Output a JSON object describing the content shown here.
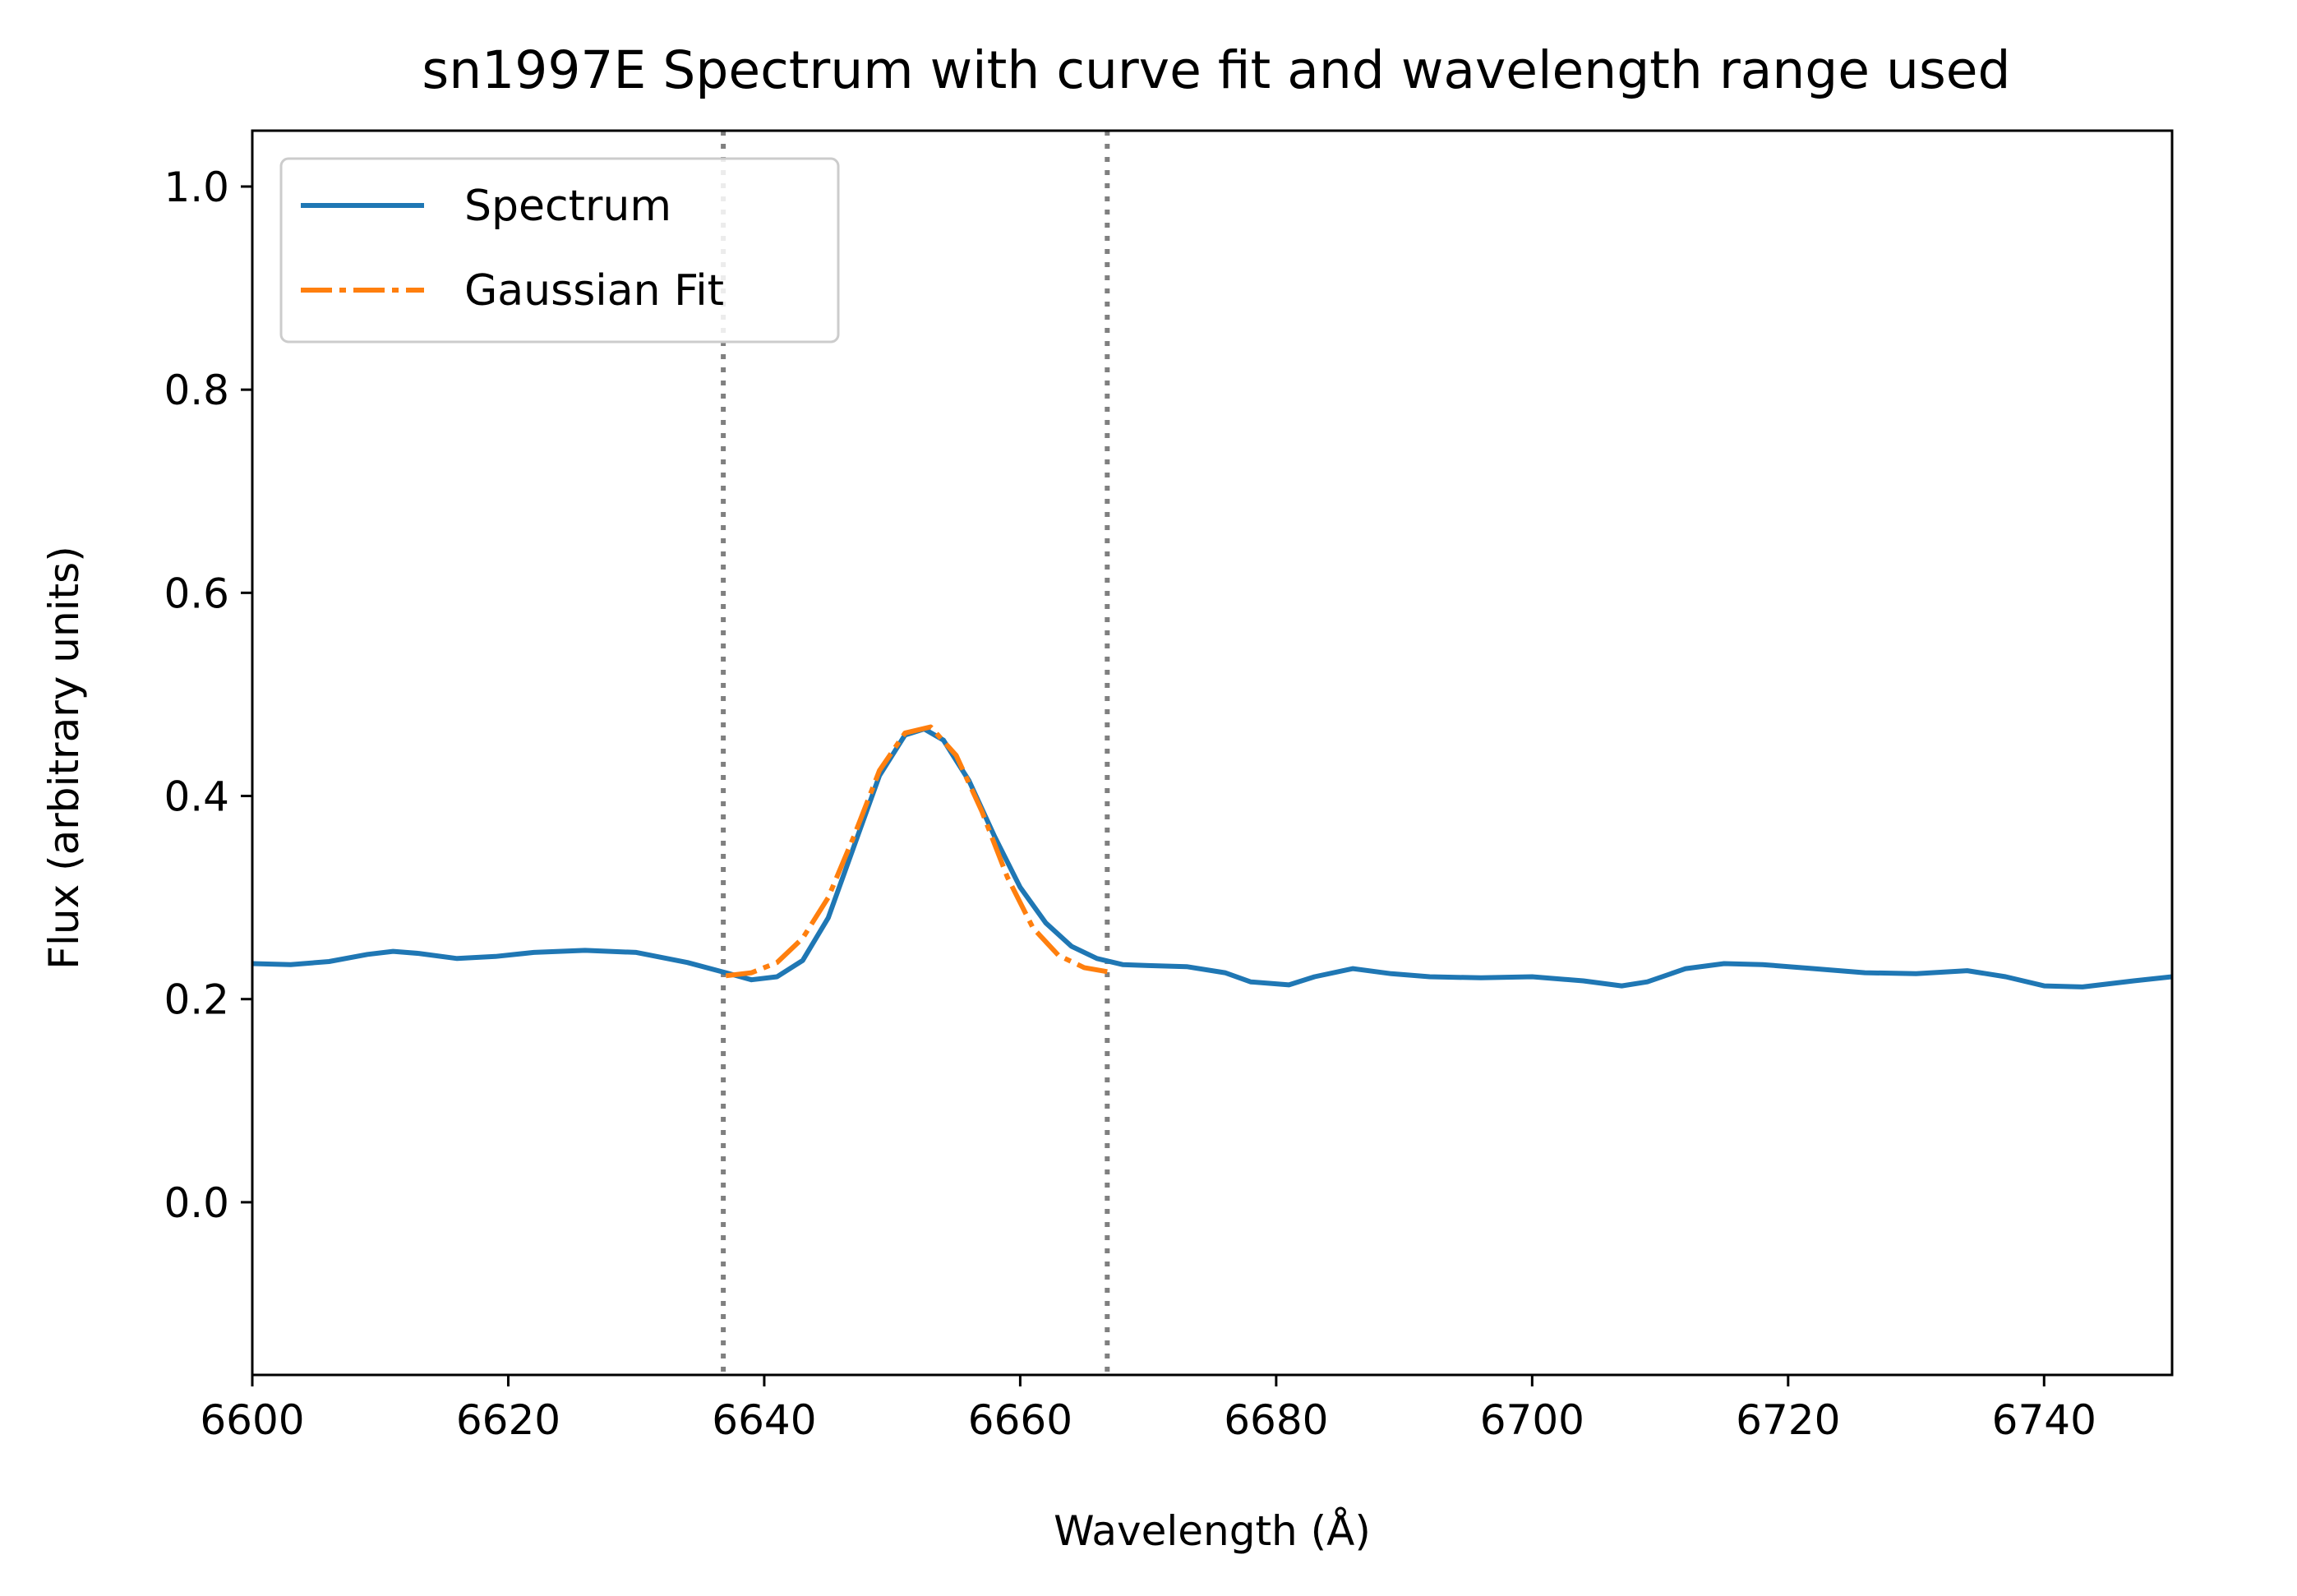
{
  "chart_data": {
    "type": "line",
    "title": "sn1997E Spectrum with curve fit and wavelength range used",
    "xlabel": "Wavelength (Å)",
    "ylabel": "Flux (arbitrary units)",
    "xlim": [
      6600,
      6750
    ],
    "ylim": [
      -0.17,
      1.055
    ],
    "xticks": [
      6600,
      6620,
      6640,
      6660,
      6680,
      6700,
      6720,
      6740
    ],
    "yticks": [
      0.0,
      0.2,
      0.4,
      0.6,
      0.8,
      1.0
    ],
    "xtick_labels": [
      "6600",
      "6620",
      "6640",
      "6660",
      "6680",
      "6700",
      "6720",
      "6740"
    ],
    "ytick_labels": [
      "0.0",
      "0.2",
      "0.4",
      "0.6",
      "0.8",
      "1.0"
    ],
    "grid": false,
    "legend": {
      "placement": "upper-left"
    },
    "vlines": [
      {
        "x": 6636.8,
        "style": "dotted",
        "color": "#808080"
      },
      {
        "x": 6666.8,
        "style": "dotted",
        "color": "#808080"
      }
    ],
    "series": [
      {
        "name": "Spectrum",
        "color": "#1f77b4",
        "style": "solid",
        "x": [
          6600,
          6603,
          6606,
          6609,
          6611,
          6613,
          6616,
          6619,
          6622,
          6626,
          6630,
          6634,
          6637,
          6639,
          6641,
          6643,
          6645,
          6647,
          6649,
          6651,
          6652.5,
          6654,
          6656,
          6658,
          6660,
          6662,
          6664,
          6666,
          6668,
          6670,
          6673,
          6676,
          6678,
          6681,
          6683,
          6686,
          6689,
          6692,
          6696,
          6700,
          6704,
          6707,
          6709,
          6712,
          6715,
          6718,
          6722,
          6726,
          6730,
          6734,
          6737,
          6740,
          6743,
          6747,
          6750
        ],
        "y": [
          0.235,
          0.234,
          0.237,
          0.244,
          0.247,
          0.245,
          0.24,
          0.242,
          0.246,
          0.248,
          0.246,
          0.236,
          0.226,
          0.219,
          0.222,
          0.238,
          0.28,
          0.35,
          0.42,
          0.46,
          0.466,
          0.455,
          0.415,
          0.36,
          0.31,
          0.275,
          0.252,
          0.24,
          0.234,
          0.233,
          0.232,
          0.226,
          0.217,
          0.214,
          0.222,
          0.23,
          0.225,
          0.222,
          0.221,
          0.222,
          0.218,
          0.213,
          0.217,
          0.23,
          0.235,
          0.234,
          0.23,
          0.226,
          0.225,
          0.228,
          0.222,
          0.213,
          0.212,
          0.218,
          0.222
        ]
      },
      {
        "name": "Gaussian Fit",
        "color": "#ff7f0e",
        "style": "dashdot",
        "x": [
          6637,
          6639,
          6641,
          6643,
          6645,
          6647,
          6649,
          6651,
          6653,
          6655,
          6657,
          6659,
          6661,
          6663,
          6665,
          6666.8
        ],
        "y": [
          0.223,
          0.226,
          0.236,
          0.26,
          0.3,
          0.36,
          0.425,
          0.462,
          0.468,
          0.44,
          0.385,
          0.32,
          0.27,
          0.243,
          0.231,
          0.227
        ]
      }
    ]
  }
}
